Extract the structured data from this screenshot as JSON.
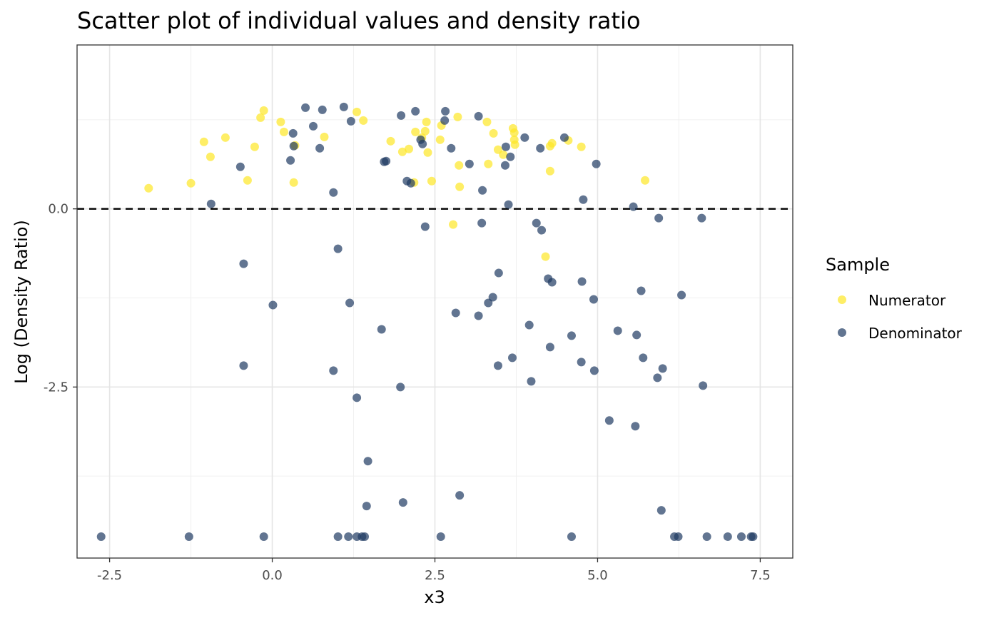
{
  "chart_data": {
    "type": "scatter",
    "title": "Scatter plot of individual values and density ratio",
    "xlabel": "x3",
    "ylabel": "Log (Density Ratio)",
    "xlim": [
      -3.0,
      8.0
    ],
    "ylim": [
      -4.9,
      2.3
    ],
    "x_ticks": [
      -2.5,
      0.0,
      2.5,
      5.0,
      7.5
    ],
    "x_tick_labels": [
      "-2.5",
      "0.0",
      "2.5",
      "5.0",
      "7.5"
    ],
    "y_ticks": [
      0.0,
      -2.5
    ],
    "y_tick_labels": [
      "0.0",
      "-2.5"
    ],
    "y_minor_gridlines": [
      1.25,
      -1.25,
      -3.75
    ],
    "x_minor_gridlines": [
      -1.25,
      1.25,
      3.75,
      6.25
    ],
    "reference_line": {
      "y": 0.0,
      "style": "dashed",
      "color": "#000000"
    },
    "grid": true,
    "legend": {
      "title": "Sample",
      "position": "right"
    },
    "series": [
      {
        "name": "Numerator",
        "color": "#FDE725",
        "points": [
          [
            -1.9,
            0.29
          ],
          [
            -1.25,
            0.36
          ],
          [
            -1.05,
            0.94
          ],
          [
            -0.95,
            0.73
          ],
          [
            -0.72,
            1.0
          ],
          [
            -0.38,
            0.4
          ],
          [
            -0.27,
            0.87
          ],
          [
            -0.18,
            1.28
          ],
          [
            -0.13,
            1.38
          ],
          [
            0.13,
            1.22
          ],
          [
            0.18,
            1.08
          ],
          [
            0.33,
            0.37
          ],
          [
            0.35,
            0.89
          ],
          [
            0.8,
            1.01
          ],
          [
            1.3,
            1.36
          ],
          [
            1.4,
            1.24
          ],
          [
            1.82,
            0.95
          ],
          [
            2.0,
            0.8
          ],
          [
            2.1,
            0.84
          ],
          [
            2.18,
            0.37
          ],
          [
            2.2,
            1.08
          ],
          [
            2.3,
            1.0
          ],
          [
            2.35,
            1.09
          ],
          [
            2.37,
            1.22
          ],
          [
            2.39,
            0.79
          ],
          [
            2.45,
            0.39
          ],
          [
            2.58,
            0.97
          ],
          [
            2.6,
            1.17
          ],
          [
            2.78,
            -0.22
          ],
          [
            2.85,
            1.29
          ],
          [
            2.87,
            0.61
          ],
          [
            2.88,
            0.31
          ],
          [
            3.3,
            1.22
          ],
          [
            3.32,
            0.63
          ],
          [
            3.4,
            1.06
          ],
          [
            3.47,
            0.83
          ],
          [
            3.55,
            0.76
          ],
          [
            3.7,
            1.13
          ],
          [
            3.72,
            1.07
          ],
          [
            3.72,
            0.97
          ],
          [
            3.73,
            0.9
          ],
          [
            4.2,
            -0.67
          ],
          [
            4.27,
            0.53
          ],
          [
            4.27,
            0.88
          ],
          [
            4.3,
            0.92
          ],
          [
            4.55,
            0.96
          ],
          [
            4.75,
            0.87
          ],
          [
            5.73,
            0.4
          ]
        ]
      },
      {
        "name": "Denominator",
        "color": "#1F3B62",
        "points": [
          [
            -2.63,
            -4.6
          ],
          [
            -1.28,
            -4.6
          ],
          [
            -0.94,
            0.07
          ],
          [
            -0.49,
            0.59
          ],
          [
            -0.44,
            -0.77
          ],
          [
            -0.44,
            -2.2
          ],
          [
            -0.13,
            -4.6
          ],
          [
            0.01,
            -1.35
          ],
          [
            0.28,
            0.68
          ],
          [
            0.32,
            1.06
          ],
          [
            0.33,
            0.88
          ],
          [
            0.51,
            1.42
          ],
          [
            0.63,
            1.16
          ],
          [
            0.73,
            0.85
          ],
          [
            0.77,
            1.39
          ],
          [
            0.94,
            0.23
          ],
          [
            0.94,
            -2.27
          ],
          [
            1.01,
            -0.56
          ],
          [
            1.01,
            -4.6
          ],
          [
            1.1,
            1.43
          ],
          [
            1.17,
            -4.6
          ],
          [
            1.19,
            -1.32
          ],
          [
            1.21,
            1.23
          ],
          [
            1.3,
            -2.65
          ],
          [
            1.3,
            -4.6
          ],
          [
            1.38,
            -4.6
          ],
          [
            1.42,
            -4.6
          ],
          [
            1.45,
            -4.17
          ],
          [
            1.47,
            -3.54
          ],
          [
            1.68,
            -1.69
          ],
          [
            1.72,
            0.66
          ],
          [
            1.75,
            0.67
          ],
          [
            1.97,
            -2.5
          ],
          [
            1.98,
            1.31
          ],
          [
            2.01,
            -4.12
          ],
          [
            2.07,
            0.39
          ],
          [
            2.13,
            0.36
          ],
          [
            2.2,
            1.37
          ],
          [
            2.28,
            0.97
          ],
          [
            2.31,
            0.91
          ],
          [
            2.35,
            -0.25
          ],
          [
            2.59,
            -4.6
          ],
          [
            2.65,
            1.24
          ],
          [
            2.66,
            1.37
          ],
          [
            2.75,
            0.85
          ],
          [
            2.82,
            -1.46
          ],
          [
            2.88,
            -4.02
          ],
          [
            3.03,
            0.63
          ],
          [
            3.17,
            1.3
          ],
          [
            3.17,
            -1.5
          ],
          [
            3.22,
            -0.2
          ],
          [
            3.23,
            0.26
          ],
          [
            3.32,
            -1.32
          ],
          [
            3.39,
            -1.24
          ],
          [
            3.47,
            -2.2
          ],
          [
            3.48,
            -0.9
          ],
          [
            3.58,
            0.61
          ],
          [
            3.59,
            0.87
          ],
          [
            3.63,
            0.06
          ],
          [
            3.66,
            0.73
          ],
          [
            3.69,
            -2.09
          ],
          [
            3.88,
            1.0
          ],
          [
            3.95,
            -1.63
          ],
          [
            3.98,
            -2.42
          ],
          [
            4.06,
            -0.2
          ],
          [
            4.12,
            0.85
          ],
          [
            4.14,
            -0.3
          ],
          [
            4.24,
            -0.98
          ],
          [
            4.27,
            -1.94
          ],
          [
            4.3,
            -1.03
          ],
          [
            4.49,
            1.0
          ],
          [
            4.6,
            -1.78
          ],
          [
            4.6,
            -4.6
          ],
          [
            4.75,
            -2.15
          ],
          [
            4.76,
            -1.02
          ],
          [
            4.78,
            0.13
          ],
          [
            4.94,
            -1.27
          ],
          [
            4.95,
            -2.27
          ],
          [
            4.98,
            0.63
          ],
          [
            5.18,
            -2.97
          ],
          [
            5.31,
            -1.71
          ],
          [
            5.55,
            0.03
          ],
          [
            5.58,
            -3.05
          ],
          [
            5.6,
            -1.77
          ],
          [
            5.67,
            -1.15
          ],
          [
            5.7,
            -2.09
          ],
          [
            5.94,
            -0.13
          ],
          [
            5.92,
            -2.37
          ],
          [
            5.98,
            -4.23
          ],
          [
            6.0,
            -2.24
          ],
          [
            6.18,
            -4.6
          ],
          [
            6.24,
            -4.6
          ],
          [
            6.29,
            -1.21
          ],
          [
            6.6,
            -0.13
          ],
          [
            6.62,
            -2.48
          ],
          [
            6.68,
            -4.6
          ],
          [
            7.0,
            -4.6
          ],
          [
            7.21,
            -4.6
          ],
          [
            7.36,
            -4.6
          ],
          [
            7.39,
            -4.6
          ]
        ]
      }
    ]
  }
}
